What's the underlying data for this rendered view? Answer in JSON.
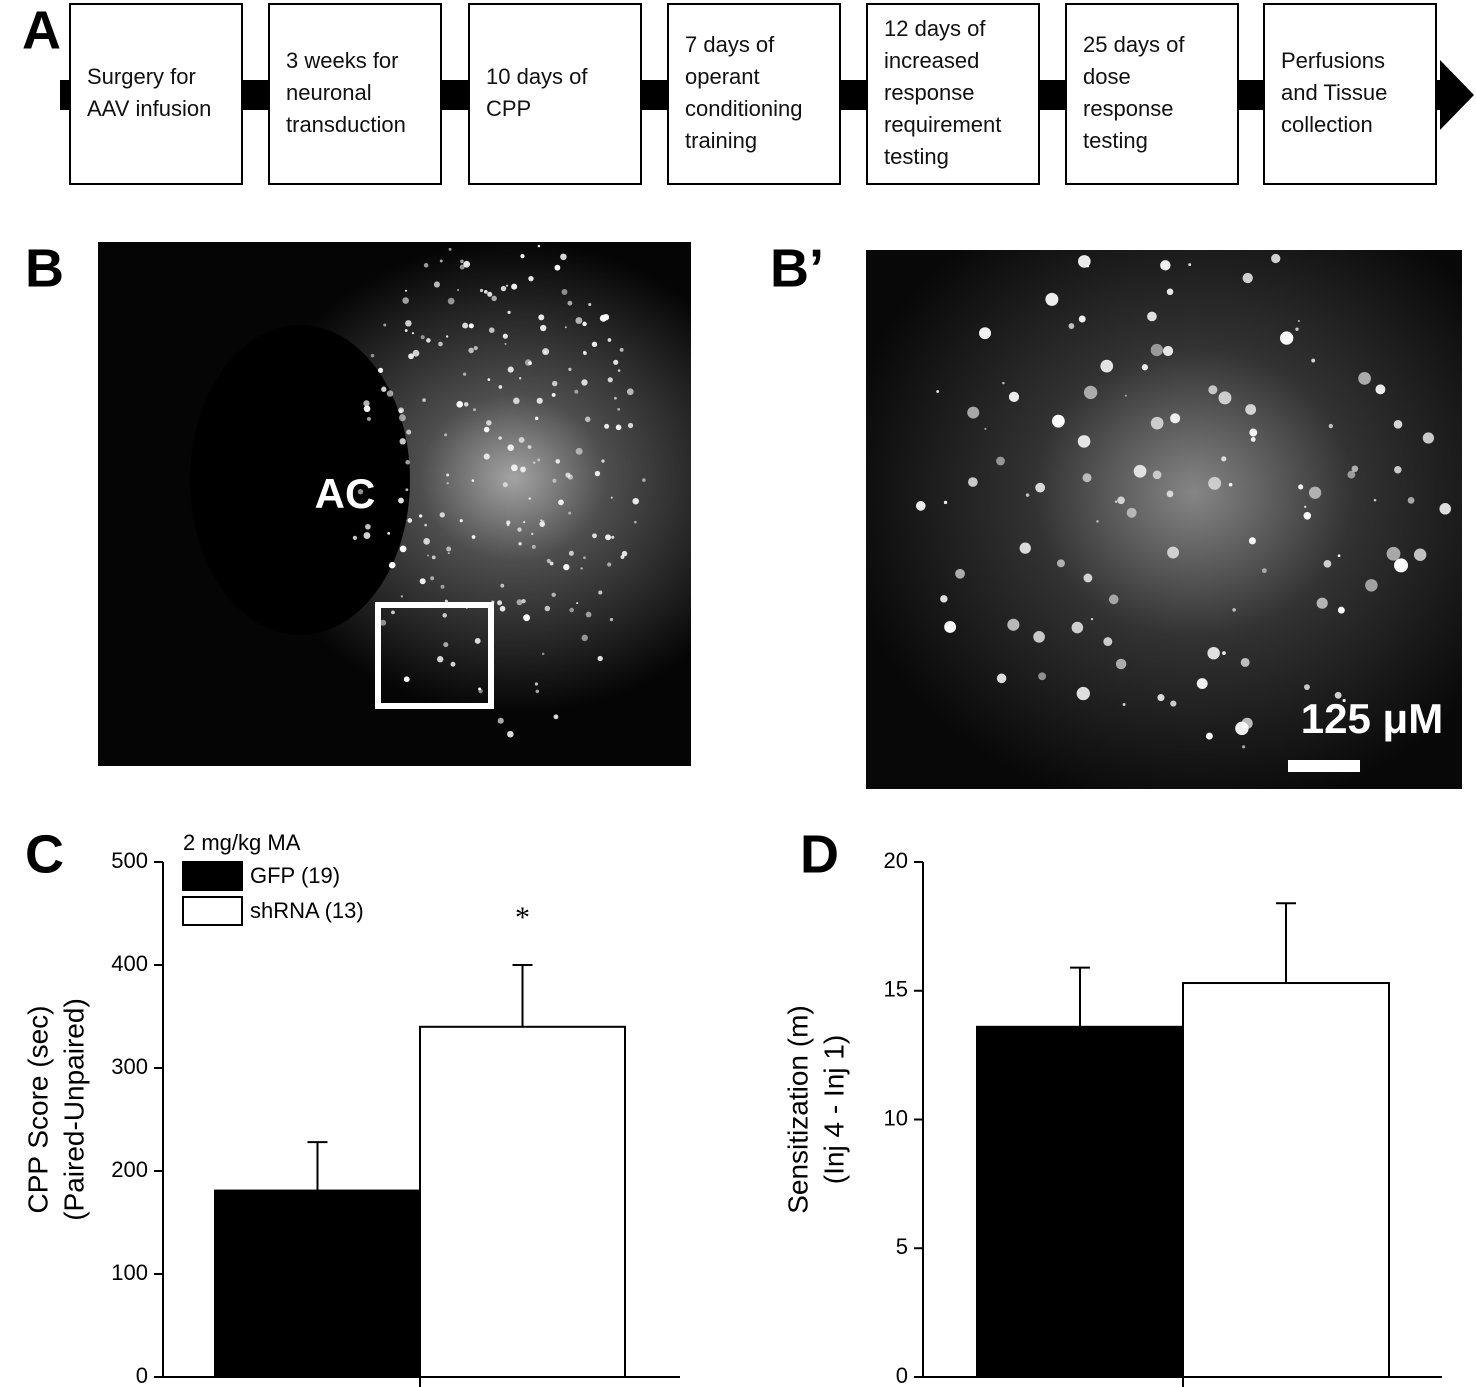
{
  "timeline": {
    "label": "A",
    "steps": [
      [
        "Surgery for",
        "AAV infusion"
      ],
      [
        "3 weeks for",
        "neuronal",
        "transduction"
      ],
      [
        "10 days of",
        "CPP"
      ],
      [
        "7 days of",
        "operant",
        "conditioning",
        "training"
      ],
      [
        "12 days of",
        "increased",
        "response",
        "requirement",
        "testing"
      ],
      [
        "25 days of",
        "dose",
        "response",
        "testing"
      ],
      [
        "Perfusions",
        "and Tissue",
        "collection"
      ]
    ]
  },
  "images": [
    {
      "label": "B",
      "annotation": "AC"
    },
    {
      "label": "B’",
      "scale_bar": "125 μM"
    }
  ],
  "chart_data": [
    {
      "type": "bar",
      "label": "C",
      "ylabel": [
        "CPP Score (sec)",
        "(Paired-Unpaired)"
      ],
      "legend_title": "2 mg/kg MA",
      "annotation": "*",
      "ylim": [
        0,
        500
      ],
      "yticks": [
        0,
        100,
        200,
        300,
        400,
        500
      ],
      "series": [
        {
          "name": "GFP (19)",
          "color": "#000000",
          "values": [
            181
          ],
          "errors": [
            47
          ]
        },
        {
          "name": "shRNA (13)",
          "color": "#ffffff",
          "values": [
            340
          ],
          "errors": [
            60
          ]
        }
      ]
    },
    {
      "type": "bar",
      "label": "D",
      "ylabel": [
        "Sensitization (m)",
        "(Inj 4 - Inj 1)"
      ],
      "ylim": [
        0,
        20
      ],
      "yticks": [
        0,
        5,
        10,
        15,
        20
      ],
      "series": [
        {
          "values": [
            13.6
          ],
          "errors": [
            2.3
          ],
          "color": "#000000"
        },
        {
          "values": [
            15.3
          ],
          "errors": [
            3.1
          ],
          "color": "#ffffff"
        }
      ]
    }
  ]
}
